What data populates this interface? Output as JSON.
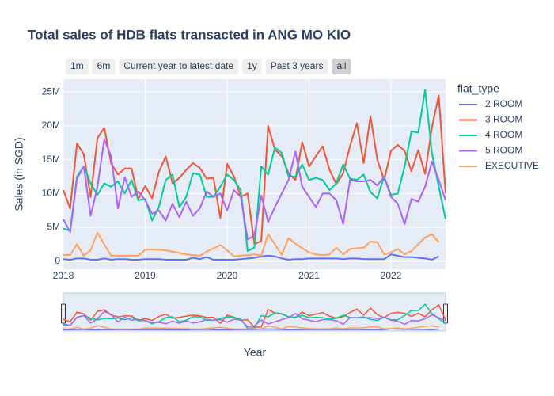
{
  "chart_data": {
    "type": "line",
    "title": "Total sales of HDB flats transacted in ANG MO KIO",
    "range_buttons": [
      "1m",
      "6m",
      "Current year to latest date",
      "1y",
      "Past 3 years",
      "all"
    ],
    "active_button": 5,
    "x_label": "Year",
    "y_label": "Sales (in SGD)",
    "legend_title": "flat_type",
    "grid": true,
    "range_slider": true,
    "x": [
      "2018-01",
      "2018-02",
      "2018-03",
      "2018-04",
      "2018-05",
      "2018-06",
      "2018-07",
      "2018-08",
      "2018-09",
      "2018-10",
      "2018-11",
      "2018-12",
      "2019-01",
      "2019-02",
      "2019-03",
      "2019-04",
      "2019-05",
      "2019-06",
      "2019-07",
      "2019-08",
      "2019-09",
      "2019-10",
      "2019-11",
      "2019-12",
      "2020-01",
      "2020-02",
      "2020-03",
      "2020-04",
      "2020-05",
      "2020-06",
      "2020-07",
      "2020-08",
      "2020-09",
      "2020-10",
      "2020-11",
      "2020-12",
      "2021-01",
      "2021-02",
      "2021-03",
      "2021-04",
      "2021-05",
      "2021-06",
      "2021-07",
      "2021-08",
      "2021-09",
      "2021-10",
      "2021-11",
      "2021-12",
      "2022-01",
      "2022-02",
      "2022-03",
      "2022-04",
      "2022-05",
      "2022-06",
      "2022-07",
      "2022-08",
      "2022-09"
    ],
    "xlim": [
      "2018-01",
      "2022-09"
    ],
    "xticks": [
      {
        "value": "2018-01",
        "label": "2018"
      },
      {
        "value": "2019-01",
        "label": "2019"
      },
      {
        "value": "2020-01",
        "label": "2020"
      },
      {
        "value": "2021-01",
        "label": "2021"
      },
      {
        "value": "2022-01",
        "label": "2022"
      }
    ],
    "ylim": [
      -1200000.0,
      26900000.0
    ],
    "yticks": [
      0,
      {
        "value": 5000000.0,
        "label": "5M"
      },
      {
        "value": 10000000.0,
        "label": "10M"
      },
      {
        "value": 15000000.0,
        "label": "15M"
      },
      {
        "value": 20000000.0,
        "label": "20M"
      },
      {
        "value": 25000000.0,
        "label": "25M"
      }
    ],
    "series": [
      {
        "name": "2 ROOM",
        "color": "#636efa",
        "values": [
          300000.0,
          200000.0,
          400000.0,
          400000.0,
          200000.0,
          200000.0,
          400000.0,
          200000.0,
          300000.0,
          300000.0,
          200000.0,
          200000.0,
          300000.0,
          300000.0,
          300000.0,
          200000.0,
          200000.0,
          200000.0,
          200000.0,
          500000.0,
          300000.0,
          600000.0,
          200000.0,
          200000.0,
          200000.0,
          200000.0,
          300000.0,
          400000.0,
          500000.0,
          700000.0,
          800000.0,
          700000.0,
          400000.0,
          200000.0,
          300000.0,
          300000.0,
          400000.0,
          400000.0,
          400000.0,
          400000.0,
          400000.0,
          300000.0,
          400000.0,
          400000.0,
          300000.0,
          300000.0,
          300000.0,
          300000.0,
          1000000.0,
          800000.0,
          600000.0,
          600000.0,
          500000.0,
          400000.0,
          200000.0,
          700000.0,
          null
        ]
      },
      {
        "name": "3 ROOM",
        "color": "#EF553B",
        "values": [
          10500000.0,
          7800000.0,
          17400000.0,
          15800000.0,
          9500000.0,
          18200000.0,
          19700000.0,
          14500000.0,
          12800000.0,
          13700000.0,
          13700000.0,
          9200000.0,
          11100000.0,
          9300000.0,
          13200000.0,
          15500000.0,
          11500000.0,
          12300000.0,
          13500000.0,
          14500000.0,
          13800000.0,
          12200000.0,
          12300000.0,
          6400000.0,
          14400000.0,
          12500000.0,
          9500000.0,
          10000000.0,
          2500000.0,
          3000000.0,
          20000000.0,
          16500000.0,
          15500000.0,
          13000000.0,
          12000000.0,
          17600000.0,
          14000000.0,
          15500000.0,
          17000000.0,
          13500000.0,
          11400000.0,
          13000000.0,
          17000000.0,
          20400000.0,
          14500000.0,
          21400000.0,
          15000000.0,
          12000000.0,
          16300000.0,
          17200000.0,
          16300000.0,
          13300000.0,
          16400000.0,
          12900000.0,
          19800000.0,
          24500000.0,
          10000000.0
        ]
      },
      {
        "name": "4 ROOM",
        "color": "#00cc96",
        "values": [
          4800000.0,
          4500000.0,
          12500000.0,
          14000000.0,
          11500000.0,
          9800000.0,
          11500000.0,
          11000000.0,
          11800000.0,
          10000000.0,
          12000000.0,
          9000000.0,
          9200000.0,
          6000000.0,
          8000000.0,
          12000000.0,
          12800000.0,
          8000000.0,
          9500000.0,
          13000000.0,
          12800000.0,
          9500000.0,
          9500000.0,
          11000000.0,
          12800000.0,
          12000000.0,
          10500000.0,
          1500000.0,
          2000000.0,
          14000000.0,
          12800000.0,
          16800000.0,
          16000000.0,
          12500000.0,
          12500000.0,
          14300000.0,
          12000000.0,
          12300000.0,
          12000000.0,
          10500000.0,
          11500000.0,
          14300000.0,
          12200000.0,
          12000000.0,
          12800000.0,
          10200000.0,
          9300000.0,
          12500000.0,
          9800000.0,
          10000000.0,
          14000000.0,
          19200000.0,
          19000000.0,
          25300000.0,
          16000000.0,
          11000000.0,
          6200000.0
        ]
      },
      {
        "name": "5 ROOM",
        "color": "#ab63fa",
        "values": [
          6200000.0,
          4300000.0,
          12200000.0,
          14000000.0,
          6700000.0,
          11000000.0,
          18000000.0,
          15500000.0,
          7800000.0,
          12400000.0,
          9500000.0,
          10300000.0,
          9000000.0,
          7000000.0,
          7500000.0,
          6000000.0,
          8500000.0,
          6500000.0,
          8800000.0,
          6700000.0,
          7800000.0,
          10300000.0,
          9500000.0,
          10000000.0,
          7500000.0,
          10500000.0,
          9500000.0,
          3200000.0,
          3800000.0,
          9700000.0,
          5800000.0,
          8000000.0,
          10000000.0,
          12000000.0,
          16200000.0,
          11000000.0,
          9500000.0,
          8000000.0,
          10000000.0,
          10000000.0,
          9000000.0,
          5500000.0,
          12000000.0,
          11800000.0,
          11800000.0,
          12000000.0,
          11200000.0,
          12500000.0,
          9500000.0,
          8500000.0,
          5500000.0,
          9200000.0,
          8800000.0,
          11000000.0,
          14700000.0,
          12000000.0,
          9000000.0
        ]
      },
      {
        "name": "EXECUTIVE",
        "color": "#FFA15A",
        "values": [
          900000.0,
          900000.0,
          2500000.0,
          800000.0,
          1600000.0,
          4200000.0,
          2500000.0,
          800000.0,
          800000.0,
          800000.0,
          800000.0,
          800000.0,
          1700000.0,
          1700000.0,
          1700000.0,
          1600000.0,
          1400000.0,
          1200000.0,
          1000000.0,
          900000.0,
          800000.0,
          1400000.0,
          1900000.0,
          2400000.0,
          1600000.0,
          700000.0,
          800000.0,
          900000.0,
          1000000.0,
          800000.0,
          4000000.0,
          2500000.0,
          900000.0,
          3400000.0,
          2600000.0,
          1900000.0,
          1300000.0,
          1000000.0,
          900000.0,
          1000000.0,
          2000000.0,
          1000000.0,
          1800000.0,
          1900000.0,
          2000000.0,
          2900000.0,
          2800000.0,
          1000000.0,
          1300000.0,
          1800000.0,
          1000000.0,
          1500000.0,
          2500000.0,
          3500000.0,
          4000000.0,
          2800000.0,
          null
        ]
      }
    ]
  }
}
